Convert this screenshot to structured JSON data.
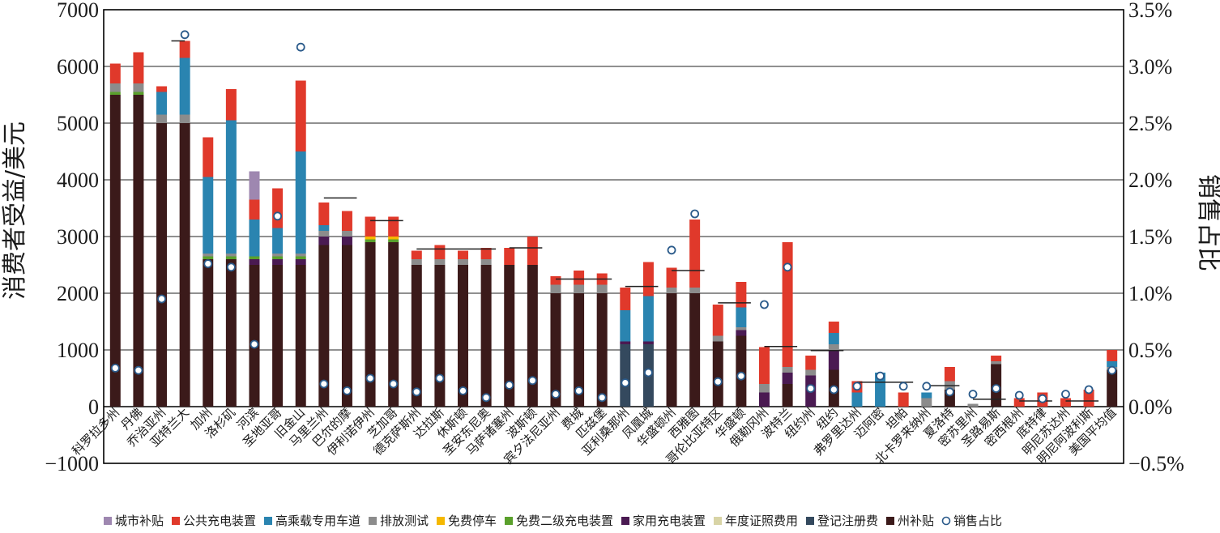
{
  "chart_data": {
    "type": "bar",
    "stacked": true,
    "ylabel": "消费者受益/美元",
    "y2label": "销售占比",
    "ylim": [
      -1000,
      7000
    ],
    "y_ticks": [
      "−1000",
      "0",
      "1000",
      "2000",
      "3000",
      "4000",
      "5000",
      "6000",
      "7000"
    ],
    "y2lim": [
      -0.5,
      3.5
    ],
    "y2_ticks": [
      "−0.5%",
      "0.0%",
      "0.5%",
      "1.0%",
      "1.5%",
      "2.0%",
      "2.5%",
      "3.0%",
      "3.5%"
    ],
    "grid": "horizontal",
    "legend_position": "bottom",
    "categories": [
      "科罗拉多州",
      "丹佛",
      "乔治亚州",
      "亚特兰大",
      "加州",
      "洛杉矶",
      "河滨",
      "圣地亚哥",
      "旧金山",
      "马里兰州",
      "巴尔的摩",
      "伊利诺伊州",
      "芝加哥",
      "德克萨斯州",
      "达拉斯",
      "休斯顿",
      "圣安东尼奥",
      "马萨诸塞州",
      "波斯顿",
      "宾夕法尼亚州",
      "费城",
      "匹兹堡",
      "亚利桑那州",
      "凤凰城",
      "华盛顿州",
      "西雅图",
      "哥伦比亚特区",
      "华盛顿",
      "俄勒冈州",
      "波特兰",
      "纽约州",
      "纽约",
      "弗罗里达州",
      "迈阿密",
      "坦帕",
      "北卡罗来纳州",
      "夏洛特",
      "密苏里州",
      "圣路易斯",
      "密西根州",
      "底特律",
      "明尼苏达州",
      "明尼阿波利斯",
      "美国平均值"
    ],
    "series": [
      {
        "name": "州补贴",
        "color": "#3b1a1a",
        "values": [
          5500,
          5500,
          5000,
          5000,
          2600,
          2600,
          2500,
          2500,
          2500,
          2850,
          2850,
          2900,
          2900,
          2500,
          2500,
          2500,
          2500,
          2500,
          2500,
          2000,
          2000,
          2000,
          0,
          0,
          2000,
          2000,
          1150,
          1250,
          0,
          400,
          0,
          650,
          0,
          0,
          0,
          0,
          300,
          0,
          750,
          0,
          0,
          0,
          0,
          650
        ]
      },
      {
        "name": "登记注册费",
        "color": "#34495e",
        "values": [
          0,
          0,
          0,
          0,
          0,
          0,
          0,
          0,
          0,
          0,
          0,
          0,
          0,
          0,
          0,
          0,
          0,
          0,
          0,
          0,
          0,
          0,
          1100,
          1100,
          0,
          0,
          0,
          0,
          0,
          0,
          0,
          0,
          0,
          0,
          0,
          0,
          0,
          0,
          0,
          0,
          0,
          0,
          0,
          0
        ]
      },
      {
        "name": "年度证照费用",
        "color": "#d8d4a6",
        "values": [
          0,
          0,
          0,
          0,
          0,
          0,
          0,
          0,
          0,
          0,
          0,
          0,
          0,
          0,
          0,
          0,
          0,
          0,
          0,
          0,
          0,
          0,
          0,
          0,
          0,
          0,
          0,
          0,
          0,
          0,
          0,
          0,
          0,
          0,
          0,
          0,
          0,
          0,
          0,
          0,
          0,
          0,
          0,
          0
        ]
      },
      {
        "name": "家用充电装置",
        "color": "#4a1a52",
        "values": [
          0,
          0,
          0,
          0,
          0,
          0,
          100,
          100,
          100,
          150,
          150,
          0,
          0,
          0,
          0,
          0,
          0,
          0,
          0,
          0,
          0,
          0,
          50,
          50,
          0,
          0,
          0,
          100,
          250,
          200,
          550,
          350,
          0,
          0,
          0,
          0,
          0,
          0,
          0,
          0,
          0,
          0,
          0,
          0
        ]
      },
      {
        "name": "免费二级充电装置",
        "color": "#5aa02c",
        "values": [
          50,
          50,
          0,
          0,
          50,
          50,
          50,
          50,
          50,
          0,
          0,
          50,
          50,
          0,
          0,
          0,
          0,
          0,
          0,
          0,
          0,
          0,
          0,
          0,
          0,
          0,
          0,
          0,
          0,
          0,
          0,
          0,
          0,
          0,
          0,
          0,
          0,
          0,
          0,
          0,
          0,
          0,
          0,
          0
        ]
      },
      {
        "name": "免费停车",
        "color": "#f5b800",
        "values": [
          0,
          0,
          0,
          0,
          0,
          0,
          0,
          0,
          0,
          0,
          0,
          50,
          50,
          0,
          0,
          0,
          0,
          0,
          0,
          0,
          0,
          0,
          0,
          0,
          0,
          0,
          0,
          0,
          0,
          0,
          0,
          0,
          0,
          0,
          0,
          0,
          0,
          0,
          0,
          0,
          0,
          0,
          0,
          0
        ]
      },
      {
        "name": "排放测试",
        "color": "#8c8c8c",
        "values": [
          150,
          150,
          150,
          150,
          50,
          50,
          0,
          50,
          50,
          100,
          100,
          0,
          0,
          100,
          100,
          100,
          100,
          0,
          0,
          150,
          150,
          150,
          0,
          0,
          100,
          100,
          100,
          50,
          150,
          100,
          100,
          100,
          0,
          0,
          0,
          150,
          150,
          50,
          50,
          0,
          0,
          0,
          0,
          50
        ]
      },
      {
        "name": "高乘载专用车道",
        "color": "#2a84b0",
        "values": [
          0,
          0,
          400,
          1000,
          1350,
          2350,
          650,
          450,
          1800,
          100,
          0,
          0,
          0,
          0,
          0,
          0,
          0,
          0,
          0,
          0,
          0,
          0,
          550,
          800,
          0,
          0,
          0,
          350,
          0,
          0,
          0,
          200,
          250,
          600,
          0,
          100,
          0,
          0,
          0,
          0,
          0,
          0,
          0,
          100
        ]
      },
      {
        "name": "公共充电装置",
        "color": "#e0392b",
        "values": [
          350,
          550,
          100,
          300,
          700,
          550,
          350,
          700,
          1250,
          400,
          350,
          350,
          350,
          150,
          250,
          150,
          200,
          300,
          500,
          150,
          250,
          200,
          400,
          600,
          350,
          1200,
          550,
          450,
          650,
          2200,
          250,
          200,
          200,
          0,
          250,
          0,
          250,
          0,
          100,
          150,
          250,
          150,
          300,
          200
        ]
      },
      {
        "name": "城市补贴",
        "color": "#9e87b0",
        "values": [
          0,
          0,
          0,
          0,
          0,
          0,
          500,
          0,
          0,
          0,
          0,
          0,
          0,
          0,
          0,
          0,
          0,
          0,
          0,
          0,
          0,
          0,
          0,
          0,
          0,
          0,
          0,
          0,
          0,
          0,
          0,
          0,
          0,
          0,
          0,
          0,
          0,
          0,
          0,
          0,
          0,
          0,
          0,
          0
        ]
      }
    ],
    "sales_share": {
      "name": "销售占比",
      "unit": "%",
      "values": [
        0.34,
        0.32,
        0.95,
        3.28,
        1.26,
        1.23,
        0.55,
        1.68,
        3.17,
        0.2,
        0.14,
        0.25,
        0.2,
        0.13,
        0.25,
        0.14,
        0.08,
        0.19,
        0.23,
        0.11,
        0.14,
        0.08,
        0.21,
        0.3,
        1.38,
        1.7,
        0.22,
        0.27,
        0.9,
        1.23,
        0.16,
        0.15,
        0.18,
        0.27,
        0.18,
        0.18,
        0.13,
        0.11,
        0.16,
        0.1,
        0.07,
        0.11,
        0.15,
        0.32
      ]
    },
    "brackets": [
      {
        "from": "亚特兰大",
        "to": "乔治亚州",
        "y": 6450
      },
      {
        "from": "马里兰州",
        "to": "巴尔的摩",
        "y": 3680
      },
      {
        "from": "伊利诺伊州",
        "to": "芝加哥",
        "y": 3280
      },
      {
        "from": "德克萨斯州",
        "to": "圣安东尼奥",
        "y": 2780
      },
      {
        "from": "马萨诸塞州",
        "to": "波斯顿",
        "y": 2800
      },
      {
        "from": "宾夕法尼亚州",
        "to": "匹兹堡",
        "y": 2250
      },
      {
        "from": "亚利桑那州",
        "to": "凤凰城",
        "y": 2120
      },
      {
        "from": "华盛顿州",
        "to": "西雅图",
        "y": 2400
      },
      {
        "from": "哥伦比亚特区",
        "to": "华盛顿",
        "y": 1830
      },
      {
        "from": "俄勒冈州",
        "to": "波特兰",
        "y": 1060
      },
      {
        "from": "纽约州",
        "to": "纽约",
        "y": 990
      },
      {
        "from": "弗罗里达州",
        "to": "坦帕",
        "y": 430
      },
      {
        "from": "北卡罗来纳州",
        "to": "夏洛特",
        "y": 370
      },
      {
        "from": "密苏里州",
        "to": "圣路易斯",
        "y": 130
      },
      {
        "from": "密西根州",
        "to": "底特律",
        "y": 100
      },
      {
        "from": "明尼苏达州",
        "to": "明尼阿波利斯",
        "y": 100
      }
    ],
    "legend": [
      {
        "label": "城市补贴",
        "color": "#9e87b0",
        "marker": "square"
      },
      {
        "label": "公共充电装置",
        "color": "#e0392b",
        "marker": "square"
      },
      {
        "label": "高乘载专用车道",
        "color": "#2a84b0",
        "marker": "square"
      },
      {
        "label": "排放测试",
        "color": "#8c8c8c",
        "marker": "square"
      },
      {
        "label": "免费停车",
        "color": "#f5b800",
        "marker": "square"
      },
      {
        "label": "免费二级充电装置",
        "color": "#5aa02c",
        "marker": "square"
      },
      {
        "label": "家用充电装置",
        "color": "#4a1a52",
        "marker": "square"
      },
      {
        "label": "年度证照费用",
        "color": "#d8d4a6",
        "marker": "square"
      },
      {
        "label": "登记注册费",
        "color": "#34495e",
        "marker": "square"
      },
      {
        "label": "州补贴",
        "color": "#3b1a1a",
        "marker": "square"
      },
      {
        "label": "销售占比",
        "color": "#2a5a8a",
        "marker": "circle"
      }
    ]
  }
}
